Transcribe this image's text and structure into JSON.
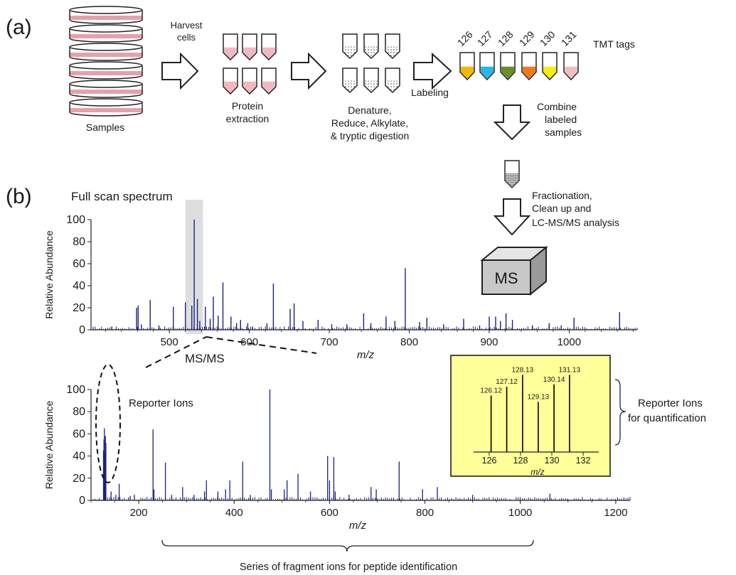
{
  "panel_a": {
    "label": "(a)",
    "samples_label": "Samples",
    "harvest_label_1": "Harvest",
    "harvest_label_2": "cells",
    "protein_label_1": "Protein",
    "protein_label_2": "extraction",
    "denature_label_1": "Denature,",
    "denature_label_2": "Reduce, Alkylate,",
    "denature_label_3": "& tryptic digestion",
    "labeling_label": "Labeling",
    "tmt_tags_label": "TMT tags",
    "tags": [
      {
        "label": "126",
        "color": "#f5b800"
      },
      {
        "label": "127",
        "color": "#29b6e8"
      },
      {
        "label": "128",
        "color": "#6a8f2a"
      },
      {
        "label": "129",
        "color": "#f07a1a"
      },
      {
        "label": "130",
        "color": "#f5ee10"
      },
      {
        "label": "131",
        "color": "#f2bfbf"
      }
    ],
    "combine_label_1": "Combine",
    "combine_label_2": "labeled",
    "combine_label_3": "samples",
    "fraction_label_1": "Fractionation,",
    "fraction_label_2": "Clean up and",
    "fraction_label_3": "LC-MS/MS analysis",
    "ms_box_label": "MS",
    "colors": {
      "sample_fill": "#e8a0a8",
      "tube_fill": "#f2b8c0",
      "ms_box": "#c8c8c8"
    }
  },
  "panel_b": {
    "label": "(b)",
    "full_scan_title": "Full scan spectrum",
    "msms_label": "MS/MS",
    "reporter_ions_label": "Reporter Ions",
    "reporter_quant_label_1": "Reporter Ions",
    "reporter_quant_label_2": "for quantification",
    "fragment_series_label": "Series of fragment ions for peptide identification"
  },
  "chart_data": [
    {
      "type": "bar",
      "title": "Full scan spectrum",
      "xlabel": "m/z",
      "ylabel": "Relative Abundance",
      "xlim": [
        402,
        1085
      ],
      "ylim": [
        0,
        100
      ],
      "xticks": [
        500,
        600,
        700,
        800,
        900,
        1000
      ],
      "yticks": [
        0,
        20,
        40,
        60,
        80,
        100
      ],
      "highlight_range": [
        520,
        542
      ],
      "color": "#1a237e",
      "peaks": [
        [
          428,
          3
        ],
        [
          459,
          20
        ],
        [
          461,
          22
        ],
        [
          465,
          5
        ],
        [
          476,
          27
        ],
        [
          487,
          4
        ],
        [
          505,
          21
        ],
        [
          520,
          25
        ],
        [
          531,
          100
        ],
        [
          528,
          22
        ],
        [
          535,
          28
        ],
        [
          538,
          8
        ],
        [
          545,
          21
        ],
        [
          551,
          10
        ],
        [
          555,
          30
        ],
        [
          561,
          13
        ],
        [
          567,
          43
        ],
        [
          577,
          12
        ],
        [
          584,
          6
        ],
        [
          589,
          9
        ],
        [
          598,
          6
        ],
        [
          604,
          3
        ],
        [
          622,
          6
        ],
        [
          630,
          42
        ],
        [
          651,
          19
        ],
        [
          656,
          24
        ],
        [
          667,
          8
        ],
        [
          686,
          9
        ],
        [
          703,
          5
        ],
        [
          722,
          5
        ],
        [
          743,
          15
        ],
        [
          752,
          6
        ],
        [
          771,
          12
        ],
        [
          782,
          8
        ],
        [
          795,
          56
        ],
        [
          813,
          7
        ],
        [
          822,
          11
        ],
        [
          843,
          5
        ],
        [
          868,
          10
        ],
        [
          888,
          4
        ],
        [
          900,
          12
        ],
        [
          908,
          12
        ],
        [
          914,
          8
        ],
        [
          921,
          15
        ],
        [
          929,
          9
        ],
        [
          954,
          4
        ],
        [
          975,
          6
        ],
        [
          990,
          4
        ],
        [
          1006,
          11
        ],
        [
          1063,
          16
        ]
      ]
    },
    {
      "type": "bar",
      "xlabel": "m/z",
      "ylabel": "Relative Abundance",
      "xlim": [
        100,
        1230
      ],
      "ylim": [
        0,
        100
      ],
      "xticks": [
        200,
        400,
        600,
        800,
        1000,
        1200
      ],
      "yticks": [
        0,
        20,
        40,
        60,
        80,
        100
      ],
      "color": "#1a237e",
      "peaks": [
        [
          126.1,
          45
        ],
        [
          127.1,
          55
        ],
        [
          128.1,
          65
        ],
        [
          129.1,
          42
        ],
        [
          130.1,
          58
        ],
        [
          131.1,
          52
        ],
        [
          142,
          8
        ],
        [
          152,
          5
        ],
        [
          159,
          15
        ],
        [
          182,
          4
        ],
        [
          191,
          5
        ],
        [
          230,
          64
        ],
        [
          232,
          10
        ],
        [
          256,
          34
        ],
        [
          269,
          5
        ],
        [
          292,
          12
        ],
        [
          316,
          5
        ],
        [
          338,
          8
        ],
        [
          342,
          18
        ],
        [
          366,
          8
        ],
        [
          382,
          10
        ],
        [
          391,
          18
        ],
        [
          418,
          35
        ],
        [
          434,
          5
        ],
        [
          475,
          100
        ],
        [
          478,
          10
        ],
        [
          505,
          10
        ],
        [
          511,
          18
        ],
        [
          534,
          24
        ],
        [
          560,
          8
        ],
        [
          596,
          40
        ],
        [
          600,
          18
        ],
        [
          609,
          39
        ],
        [
          612,
          8
        ],
        [
          641,
          5
        ],
        [
          687,
          12
        ],
        [
          698,
          10
        ],
        [
          746,
          35
        ],
        [
          795,
          10
        ],
        [
          826,
          12
        ],
        [
          900,
          5
        ],
        [
          1062,
          6
        ]
      ]
    },
    {
      "type": "bar",
      "xlim": [
        125,
        133
      ],
      "ylim": [
        0,
        100
      ],
      "xticks": [
        126,
        128,
        130,
        132
      ],
      "color": "#000000",
      "categories": [
        "126.12",
        "127.12",
        "128.13",
        "129.13",
        "130.14",
        "131.13"
      ],
      "x": [
        126.12,
        127.12,
        128.13,
        129.13,
        130.14,
        131.13
      ],
      "values": [
        71,
        82,
        97,
        63,
        85,
        97
      ]
    }
  ]
}
